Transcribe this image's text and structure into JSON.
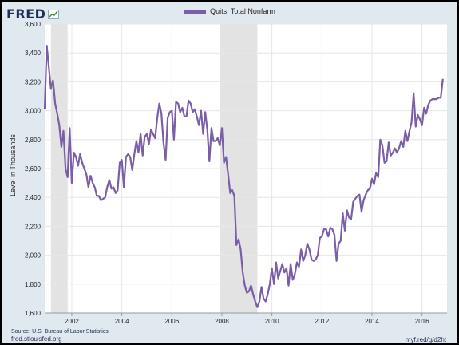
{
  "header": {
    "logo_text": "FRED"
  },
  "footer": {
    "source": "Source: U.S. Bureau of Labor Statistics",
    "site": "fred.stlouisfed.org",
    "short_link": "myf.red/g/d2ht"
  },
  "colors": {
    "series": "#7a5ea7",
    "plot_background": "#ffffff",
    "frame_background": "#e1e9f0",
    "recession_shading": "#e3e3e3",
    "logo": "#1f2e58"
  },
  "chart_data": {
    "type": "line",
    "title": "",
    "xlabel": "",
    "ylabel": "Level in Thousands",
    "legend": "top-center",
    "grid": true,
    "xlim": [
      "2000-12",
      "2017-01"
    ],
    "ylim": [
      1600,
      3600
    ],
    "x_ticks": [
      "2002",
      "2004",
      "2006",
      "2008",
      "2010",
      "2012",
      "2014",
      "2016"
    ],
    "y_ticks": [
      "1,600",
      "1,800",
      "2,000",
      "2,200",
      "2,400",
      "2,600",
      "2,800",
      "3,000",
      "3,200",
      "3,400",
      "3,600"
    ],
    "recessions": [
      {
        "start": "2001-03",
        "end": "2001-11"
      },
      {
        "start": "2007-12",
        "end": "2009-06"
      }
    ],
    "series": [
      {
        "name": "Quits: Total Nonfarm",
        "points": [
          [
            "2000-12",
            3010
          ],
          [
            "2001-01",
            3450
          ],
          [
            "2001-02",
            3300
          ],
          [
            "2001-03",
            3150
          ],
          [
            "2001-04",
            3210
          ],
          [
            "2001-05",
            3050
          ],
          [
            "2001-06",
            2980
          ],
          [
            "2001-07",
            2900
          ],
          [
            "2001-08",
            2750
          ],
          [
            "2001-09",
            2860
          ],
          [
            "2001-10",
            2600
          ],
          [
            "2001-11",
            2540
          ],
          [
            "2001-12",
            2880
          ],
          [
            "2002-01",
            2500
          ],
          [
            "2002-02",
            2710
          ],
          [
            "2002-03",
            2680
          ],
          [
            "2002-04",
            2620
          ],
          [
            "2002-05",
            2700
          ],
          [
            "2002-06",
            2640
          ],
          [
            "2002-07",
            2600
          ],
          [
            "2002-08",
            2560
          ],
          [
            "2002-09",
            2470
          ],
          [
            "2002-10",
            2550
          ],
          [
            "2002-11",
            2500
          ],
          [
            "2002-12",
            2470
          ],
          [
            "2003-01",
            2410
          ],
          [
            "2003-02",
            2410
          ],
          [
            "2003-03",
            2380
          ],
          [
            "2003-04",
            2390
          ],
          [
            "2003-05",
            2400
          ],
          [
            "2003-06",
            2470
          ],
          [
            "2003-07",
            2520
          ],
          [
            "2003-08",
            2460
          ],
          [
            "2003-09",
            2470
          ],
          [
            "2003-10",
            2430
          ],
          [
            "2003-11",
            2450
          ],
          [
            "2003-12",
            2640
          ],
          [
            "2004-01",
            2660
          ],
          [
            "2004-02",
            2470
          ],
          [
            "2004-03",
            2680
          ],
          [
            "2004-04",
            2700
          ],
          [
            "2004-05",
            2680
          ],
          [
            "2004-06",
            2590
          ],
          [
            "2004-07",
            2700
          ],
          [
            "2004-08",
            2790
          ],
          [
            "2004-09",
            2710
          ],
          [
            "2004-10",
            2840
          ],
          [
            "2004-11",
            2690
          ],
          [
            "2004-12",
            2820
          ],
          [
            "2005-01",
            2840
          ],
          [
            "2005-02",
            2770
          ],
          [
            "2005-03",
            2870
          ],
          [
            "2005-04",
            2840
          ],
          [
            "2005-05",
            2810
          ],
          [
            "2005-06",
            2950
          ],
          [
            "2005-07",
            3050
          ],
          [
            "2005-08",
            2980
          ],
          [
            "2005-09",
            2780
          ],
          [
            "2005-10",
            2660
          ],
          [
            "2005-11",
            2950
          ],
          [
            "2005-12",
            2990
          ],
          [
            "2006-01",
            3000
          ],
          [
            "2006-02",
            2800
          ],
          [
            "2006-03",
            3060
          ],
          [
            "2006-04",
            3050
          ],
          [
            "2006-05",
            2990
          ],
          [
            "2006-06",
            3020
          ],
          [
            "2006-07",
            2960
          ],
          [
            "2006-08",
            2960
          ],
          [
            "2006-09",
            3070
          ],
          [
            "2006-10",
            3050
          ],
          [
            "2006-11",
            2990
          ],
          [
            "2006-12",
            3010
          ],
          [
            "2007-01",
            2960
          ],
          [
            "2007-02",
            2900
          ],
          [
            "2007-03",
            3000
          ],
          [
            "2007-04",
            2840
          ],
          [
            "2007-05",
            2990
          ],
          [
            "2007-06",
            2870
          ],
          [
            "2007-07",
            2650
          ],
          [
            "2007-08",
            2880
          ],
          [
            "2007-09",
            2790
          ],
          [
            "2007-10",
            2790
          ],
          [
            "2007-11",
            2810
          ],
          [
            "2007-12",
            2760
          ],
          [
            "2008-01",
            2880
          ],
          [
            "2008-02",
            2640
          ],
          [
            "2008-03",
            2680
          ],
          [
            "2008-04",
            2560
          ],
          [
            "2008-05",
            2430
          ],
          [
            "2008-06",
            2450
          ],
          [
            "2008-07",
            2410
          ],
          [
            "2008-08",
            2070
          ],
          [
            "2008-09",
            2110
          ],
          [
            "2008-10",
            2040
          ],
          [
            "2008-11",
            1880
          ],
          [
            "2008-12",
            1790
          ],
          [
            "2009-01",
            1740
          ],
          [
            "2009-02",
            1750
          ],
          [
            "2009-03",
            1790
          ],
          [
            "2009-04",
            1730
          ],
          [
            "2009-05",
            1680
          ],
          [
            "2009-06",
            1640
          ],
          [
            "2009-07",
            1680
          ],
          [
            "2009-08",
            1780
          ],
          [
            "2009-09",
            1700
          ],
          [
            "2009-10",
            1680
          ],
          [
            "2009-11",
            1730
          ],
          [
            "2009-12",
            1800
          ],
          [
            "2010-01",
            1910
          ],
          [
            "2010-02",
            1800
          ],
          [
            "2010-03",
            1950
          ],
          [
            "2010-04",
            1840
          ],
          [
            "2010-05",
            1890
          ],
          [
            "2010-06",
            1940
          ],
          [
            "2010-07",
            1880
          ],
          [
            "2010-08",
            1910
          ],
          [
            "2010-09",
            1790
          ],
          [
            "2010-10",
            1940
          ],
          [
            "2010-11",
            1830
          ],
          [
            "2010-12",
            1870
          ],
          [
            "2011-01",
            1950
          ],
          [
            "2011-02",
            1920
          ],
          [
            "2011-03",
            2040
          ],
          [
            "2011-04",
            1960
          ],
          [
            "2011-05",
            2000
          ],
          [
            "2011-06",
            2080
          ],
          [
            "2011-07",
            2040
          ],
          [
            "2011-08",
            1970
          ],
          [
            "2011-09",
            1960
          ],
          [
            "2011-10",
            1970
          ],
          [
            "2011-11",
            2000
          ],
          [
            "2011-12",
            2120
          ],
          [
            "2012-01",
            2130
          ],
          [
            "2012-02",
            2180
          ],
          [
            "2012-03",
            2180
          ],
          [
            "2012-04",
            2130
          ],
          [
            "2012-05",
            2190
          ],
          [
            "2012-06",
            2180
          ],
          [
            "2012-07",
            2140
          ],
          [
            "2012-08",
            1960
          ],
          [
            "2012-09",
            2080
          ],
          [
            "2012-10",
            2100
          ],
          [
            "2012-11",
            2290
          ],
          [
            "2012-12",
            2170
          ],
          [
            "2013-01",
            2310
          ],
          [
            "2013-02",
            2260
          ],
          [
            "2013-03",
            2250
          ],
          [
            "2013-04",
            2370
          ],
          [
            "2013-05",
            2390
          ],
          [
            "2013-06",
            2410
          ],
          [
            "2013-07",
            2420
          ],
          [
            "2013-08",
            2300
          ],
          [
            "2013-09",
            2380
          ],
          [
            "2013-10",
            2420
          ],
          [
            "2013-11",
            2450
          ],
          [
            "2013-12",
            2460
          ],
          [
            "2014-01",
            2530
          ],
          [
            "2014-02",
            2490
          ],
          [
            "2014-03",
            2570
          ],
          [
            "2014-04",
            2540
          ],
          [
            "2014-05",
            2800
          ],
          [
            "2014-06",
            2760
          ],
          [
            "2014-07",
            2640
          ],
          [
            "2014-08",
            2650
          ],
          [
            "2014-09",
            2780
          ],
          [
            "2014-10",
            2690
          ],
          [
            "2014-11",
            2710
          ],
          [
            "2014-12",
            2740
          ],
          [
            "2015-01",
            2710
          ],
          [
            "2015-02",
            2740
          ],
          [
            "2015-03",
            2790
          ],
          [
            "2015-04",
            2750
          ],
          [
            "2015-05",
            2860
          ],
          [
            "2015-06",
            2790
          ],
          [
            "2015-07",
            2860
          ],
          [
            "2015-08",
            2920
          ],
          [
            "2015-09",
            3120
          ],
          [
            "2015-10",
            2890
          ],
          [
            "2015-11",
            2970
          ],
          [
            "2015-12",
            2940
          ],
          [
            "2016-01",
            2900
          ],
          [
            "2016-02",
            3020
          ],
          [
            "2016-03",
            2980
          ],
          [
            "2016-04",
            3040
          ],
          [
            "2016-05",
            3070
          ],
          [
            "2016-06",
            3080
          ],
          [
            "2016-07",
            3080
          ],
          [
            "2016-08",
            3080
          ],
          [
            "2016-09",
            3090
          ],
          [
            "2016-10",
            3090
          ],
          [
            "2016-11",
            3220
          ]
        ]
      }
    ]
  }
}
